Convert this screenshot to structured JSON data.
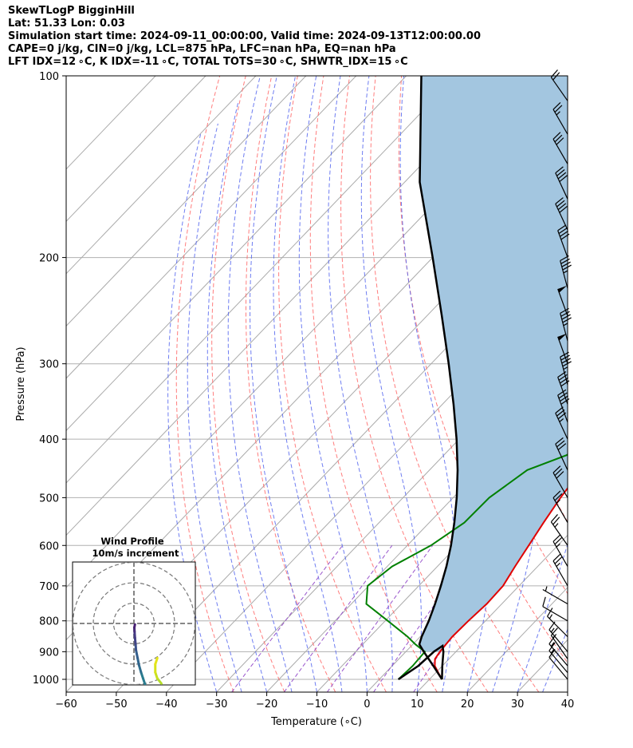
{
  "header": {
    "line1": "SkewTLogP BigginHill",
    "line2": "Lat: 51.33   Lon: 0.03",
    "line3": "Simulation start time: 2024-09-11_00:00:00, Valid time: 2024-09-13T12:00:00.00",
    "line4": "CAPE=0 j/kg, CIN=0 j/kg, LCL=875 hPa, LFC=nan hPa, EQ=nan hPa",
    "line5": "LFT IDX=12 ∘C, K IDX=-11 ∘C, TOTAL TOTS=30 ∘C, SHWTR_IDX=15 ∘C"
  },
  "chart_data": {
    "type": "line",
    "xlabel": "Temperature (∘C)",
    "ylabel": "Pressure (hPa)",
    "xlim": [
      -60,
      40
    ],
    "ylim": [
      1050,
      100
    ],
    "y_scale": "log",
    "x_ticks": [
      -60,
      -50,
      -40,
      -30,
      -20,
      -10,
      0,
      10,
      20,
      30,
      40
    ],
    "y_ticks": [
      1000,
      900,
      800,
      700,
      600,
      500,
      400,
      300,
      200,
      100
    ],
    "grid": true,
    "colors": {
      "temperature": "#e00000",
      "dewpoint": "#008000",
      "parcel": "#000000",
      "cin_cape_fill": "#a3c6e0",
      "dry_adiabats": "#ff6666",
      "moist_adiabats": "#5566ee",
      "mixing_ratio": "#9955cc",
      "isotherms": "#aaaaaa"
    },
    "series": [
      {
        "key": "temperature",
        "points": [
          [
            1000,
            12.5
          ],
          [
            975,
            10.5
          ],
          [
            950,
            8.5
          ],
          [
            925,
            7.2
          ],
          [
            900,
            6.8
          ],
          [
            850,
            6.4
          ],
          [
            800,
            6.6
          ],
          [
            750,
            7.0
          ],
          [
            700,
            6.8
          ],
          [
            650,
            5.5
          ],
          [
            600,
            4.2
          ],
          [
            550,
            2.8
          ],
          [
            500,
            1.4
          ],
          [
            450,
            0.3
          ],
          [
            400,
            -1.2
          ],
          [
            350,
            -4.5
          ],
          [
            300,
            -11.0
          ],
          [
            275,
            -16.8
          ],
          [
            250,
            -22.8
          ],
          [
            225,
            -27.5
          ],
          [
            200,
            -31.5
          ],
          [
            175,
            -34.5
          ],
          [
            150,
            -38.5
          ],
          [
            140,
            -41.5
          ],
          [
            130,
            -46.0
          ],
          [
            120,
            -51.5
          ],
          [
            110,
            -56.5
          ],
          [
            100,
            -61.5
          ]
        ]
      },
      {
        "key": "dewpoint",
        "points": [
          [
            1000,
            3.8
          ],
          [
            950,
            4.1
          ],
          [
            900,
            3.8
          ],
          [
            875,
            0.5
          ],
          [
            850,
            -2.5
          ],
          [
            800,
            -9.5
          ],
          [
            750,
            -17.0
          ],
          [
            700,
            -20.2
          ],
          [
            650,
            -19.0
          ],
          [
            600,
            -15.3
          ],
          [
            550,
            -13.0
          ],
          [
            500,
            -12.8
          ],
          [
            450,
            -10.5
          ],
          [
            425,
            -5.5
          ],
          [
            400,
            -4.6
          ],
          [
            375,
            -5.7
          ],
          [
            350,
            -10.5
          ],
          [
            325,
            -10.7
          ],
          [
            300,
            -10.8
          ],
          [
            275,
            -13.1
          ],
          [
            250,
            -14.8
          ],
          [
            225,
            -13.6
          ],
          [
            200,
            -13.6
          ],
          [
            175,
            -22.0
          ],
          [
            150,
            -30.4
          ],
          [
            100,
            -53.2
          ]
        ]
      },
      {
        "key": "parcel",
        "points": [
          [
            1000,
            12.5
          ],
          [
            950,
            8.2
          ],
          [
            900,
            3.6
          ],
          [
            875,
            1.3
          ],
          [
            850,
            0.3
          ],
          [
            800,
            -1.3
          ],
          [
            750,
            -3.3
          ],
          [
            700,
            -5.6
          ],
          [
            650,
            -8.2
          ],
          [
            600,
            -11.3
          ],
          [
            550,
            -15.0
          ],
          [
            500,
            -19.3
          ],
          [
            450,
            -24.4
          ],
          [
            400,
            -30.5
          ],
          [
            350,
            -37.8
          ],
          [
            300,
            -46.5
          ],
          [
            250,
            -57.0
          ],
          [
            200,
            -70.0
          ],
          [
            150,
            -87.0
          ],
          [
            100,
            -107.0
          ]
        ]
      }
    ],
    "wind_barbs_kt": [
      {
        "p": 1000,
        "dir": 320,
        "spd": 12
      },
      {
        "p": 975,
        "dir": 320,
        "spd": 14
      },
      {
        "p": 950,
        "dir": 320,
        "spd": 15
      },
      {
        "p": 925,
        "dir": 325,
        "spd": 14
      },
      {
        "p": 900,
        "dir": 320,
        "spd": 15
      },
      {
        "p": 850,
        "dir": 315,
        "spd": 13
      },
      {
        "p": 800,
        "dir": 300,
        "spd": 10
      },
      {
        "p": 750,
        "dir": 300,
        "spd": 7
      },
      {
        "p": 700,
        "dir": 330,
        "spd": 23
      },
      {
        "p": 650,
        "dir": 330,
        "spd": 25
      },
      {
        "p": 600,
        "dir": 325,
        "spd": 25
      },
      {
        "p": 550,
        "dir": 330,
        "spd": 27
      },
      {
        "p": 500,
        "dir": 330,
        "spd": 28
      },
      {
        "p": 450,
        "dir": 335,
        "spd": 30
      },
      {
        "p": 400,
        "dir": 335,
        "spd": 33
      },
      {
        "p": 375,
        "dir": 340,
        "spd": 38
      },
      {
        "p": 350,
        "dir": 340,
        "spd": 42
      },
      {
        "p": 325,
        "dir": 345,
        "spd": 45
      },
      {
        "p": 300,
        "dir": 340,
        "spd": 48
      },
      {
        "p": 275,
        "dir": 345,
        "spd": 45
      },
      {
        "p": 250,
        "dir": 340,
        "spd": 48
      },
      {
        "p": 225,
        "dir": 345,
        "spd": 45
      },
      {
        "p": 200,
        "dir": 340,
        "spd": 42
      },
      {
        "p": 180,
        "dir": 335,
        "spd": 40
      },
      {
        "p": 160,
        "dir": 335,
        "spd": 38
      },
      {
        "p": 140,
        "dir": 330,
        "spd": 32
      },
      {
        "p": 125,
        "dir": 330,
        "spd": 25
      },
      {
        "p": 110,
        "dir": 325,
        "spd": 20
      }
    ],
    "hodograph": {
      "title": "Wind Profile",
      "subtitle": "10m/s increment",
      "rings_ms": [
        10,
        20,
        30
      ],
      "points_uv": [
        [
          5.5,
          -30
        ],
        [
          4.5,
          -27
        ],
        [
          3.5,
          -24
        ],
        [
          2.5,
          -20.5
        ],
        [
          1.8,
          -17
        ],
        [
          1.0,
          -13
        ],
        [
          0.8,
          -10
        ],
        [
          0.5,
          -7
        ],
        [
          0.3,
          -4
        ],
        [
          0.2,
          -2
        ],
        [
          0.5,
          -0.5
        ]
      ],
      "low_level_uv": [
        [
          13.5,
          -29.5
        ],
        [
          11.5,
          -27
        ],
        [
          10.5,
          -24
        ],
        [
          10.5,
          -20
        ],
        [
          11.5,
          -17
        ]
      ]
    }
  }
}
